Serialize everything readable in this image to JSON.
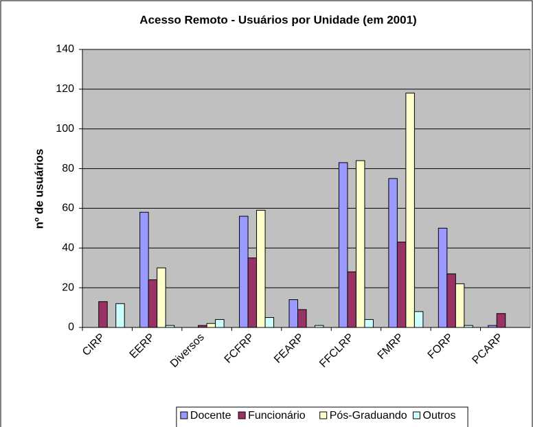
{
  "chart_data": {
    "type": "bar",
    "title": "Acesso Remoto - Usuários por Unidade (em 2001)",
    "y_label": "nº de usuários",
    "categories": [
      "CIRP",
      "EERP",
      "Diversos",
      "FCFRP",
      "FEARP",
      "FFCLRP",
      "FMRP",
      "FORP",
      "PCARP"
    ],
    "series": [
      {
        "name": "Docente",
        "color": "#9999ff",
        "values": [
          0,
          58,
          0,
          56,
          14,
          83,
          75,
          50,
          1
        ]
      },
      {
        "name": "Funcionário",
        "color": "#993366",
        "values": [
          13,
          24,
          1,
          35,
          9,
          28,
          43,
          27,
          7
        ]
      },
      {
        "name": "Pós-Graduando",
        "color": "#ffffcc",
        "values": [
          0,
          30,
          2,
          59,
          0,
          84,
          118,
          22,
          0
        ]
      },
      {
        "name": "Outros",
        "color": "#ccffff",
        "values": [
          12,
          1,
          4,
          5,
          1,
          4,
          8,
          1,
          0
        ]
      }
    ],
    "ylim": [
      0,
      140
    ],
    "yticks": [
      0,
      20,
      40,
      60,
      80,
      100,
      120,
      140
    ],
    "grid": true,
    "legend": "bottom"
  }
}
